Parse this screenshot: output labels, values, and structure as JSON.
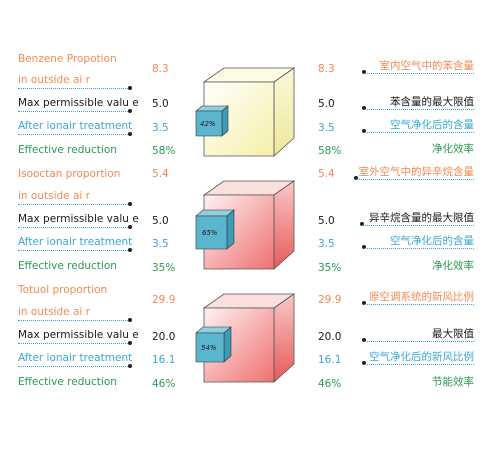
{
  "groups": [
    {
      "labels": [
        "Benzene Propotion",
        "in outside ai r",
        "Max permissible valu e",
        "After ionair treatment",
        "Effective reduction"
      ],
      "values": [
        "8.3",
        "5.0",
        "3.5",
        "58%"
      ],
      "cn_labels": [
        "室内空气中的苯含量",
        "苯含量的最大限值",
        "空气净化后的含量",
        "净化效率"
      ],
      "cube_label": "42%",
      "cube_color": "#f5f0a8",
      "reduction": 0.58
    },
    {
      "labels": [
        "Isooctan proportion",
        "in outside ai r",
        "Max permissible valu e",
        "After ionair treatment",
        "Effective reduction"
      ],
      "values": [
        "5.4",
        "5.0",
        "3.5",
        "35%"
      ],
      "cn_labels": [
        "室外空气中的异辛烷含量",
        "异辛烷含量的最大限值",
        "空气净化后的含量",
        "净化效率"
      ],
      "cube_label": "65%",
      "cube_color": "#f08c8c",
      "reduction": 0.35
    },
    {
      "labels": [
        "Totuol proportion",
        "in outside ai r",
        "Max permissible valu e",
        "After ionair treatment",
        "Effective reduction"
      ],
      "values": [
        "29.9",
        "20.0",
        "16.1",
        "46%"
      ],
      "cn_labels": [
        "原空调系统的新风比例",
        "最大限值",
        "空气净化后的新风比例",
        "节能效率"
      ],
      "cube_label": "54%",
      "cube_color": "#f08c8c",
      "reduction": 0.46
    }
  ],
  "colors": {
    "orange": "#f28a55",
    "black": "#1a1a1a",
    "blue": "#3aa7d6",
    "green": "#2b9a52",
    "small_cube": "#5bb5cc"
  }
}
